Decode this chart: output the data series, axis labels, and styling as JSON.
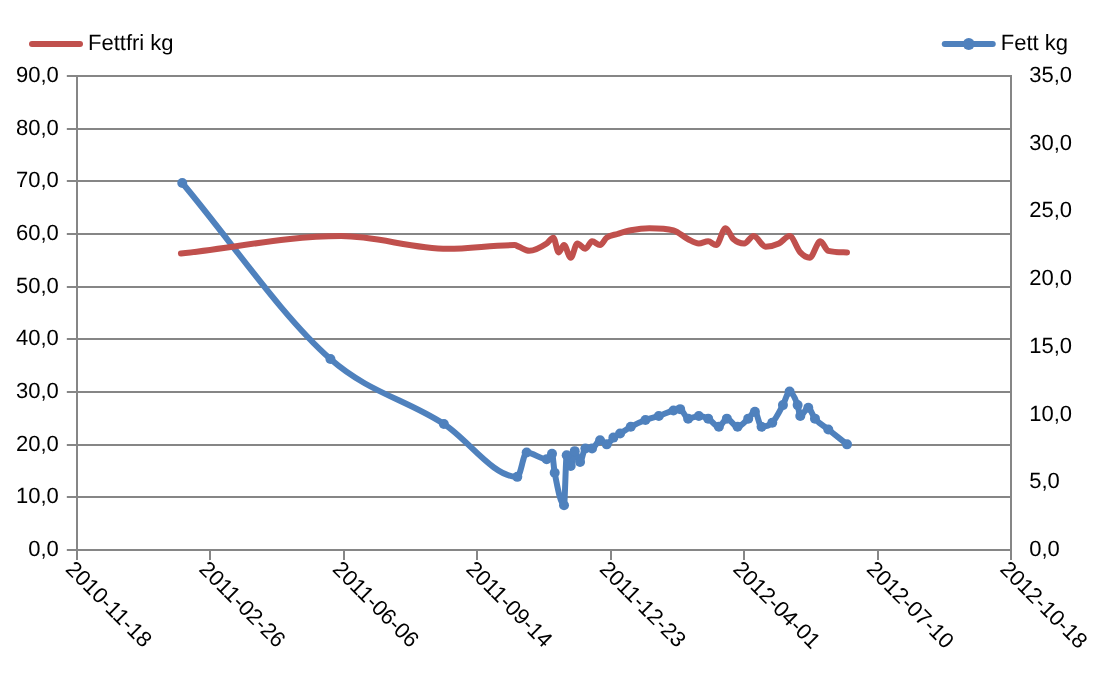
{
  "chart_data": {
    "type": "line",
    "xlim": [
      "2010-11-18",
      "2012-10-18"
    ],
    "xticks": [
      "2010-11-18",
      "2011-02-26",
      "2011-06-06",
      "2011-09-14",
      "2011-12-23",
      "2012-04-01",
      "2012-07-10",
      "2012-10-18"
    ],
    "ylim": [
      0,
      90
    ],
    "yticks": [
      {
        "value": 0,
        "label": "0,0"
      },
      {
        "value": 10,
        "label": "10,0"
      },
      {
        "value": 20,
        "label": "20,0"
      },
      {
        "value": 30,
        "label": "30,0"
      },
      {
        "value": 40,
        "label": "40,0"
      },
      {
        "value": 50,
        "label": "50,0"
      },
      {
        "value": 60,
        "label": "60,0"
      },
      {
        "value": 70,
        "label": "70,0"
      },
      {
        "value": 80,
        "label": "80,0"
      },
      {
        "value": 90,
        "label": "90,0"
      }
    ],
    "y2lim": [
      0,
      35
    ],
    "y2ticks": [
      {
        "value": 0,
        "label": "0,0"
      },
      {
        "value": 5,
        "label": "5,0"
      },
      {
        "value": 10,
        "label": "10,0"
      },
      {
        "value": 15,
        "label": "15,0"
      },
      {
        "value": 20,
        "label": "20,0"
      },
      {
        "value": 25,
        "label": "25,0"
      },
      {
        "value": 30,
        "label": "30,0"
      },
      {
        "value": 35,
        "label": "35,0"
      }
    ],
    "grid": "y",
    "legend": "top",
    "series": [
      {
        "name": "Fettfri kg",
        "color": "#c0504d",
        "marker": "none",
        "x": [
          "2011-02-04",
          "2011-06-04",
          "2011-08-23",
          "2011-10-12",
          "2011-10-15",
          "2011-10-23",
          "2011-11-05",
          "2011-11-10",
          "2011-11-14",
          "2011-11-18",
          "2011-11-23",
          "2011-11-28",
          "2011-12-04",
          "2011-12-09",
          "2011-12-15",
          "2011-12-20",
          "2011-12-28",
          "2012-01-07",
          "2012-01-21",
          "2012-02-08",
          "2012-02-19",
          "2012-02-27",
          "2012-03-05",
          "2012-03-11",
          "2012-03-18",
          "2012-03-24",
          "2012-04-01",
          "2012-04-08",
          "2012-04-17",
          "2012-04-27",
          "2012-05-05",
          "2012-05-13",
          "2012-05-20",
          "2012-05-28",
          "2012-06-03",
          "2012-06-17"
        ],
        "values": [
          56.3,
          59.6,
          57.2,
          57.9,
          57.6,
          56.8,
          58.2,
          59.3,
          56.5,
          57.9,
          55.5,
          58.2,
          57.2,
          58.6,
          57.9,
          59.3,
          60.0,
          60.7,
          61.1,
          60.7,
          59.0,
          58.2,
          58.6,
          57.9,
          61.1,
          59.0,
          58.2,
          59.6,
          57.6,
          58.2,
          59.6,
          56.5,
          55.5,
          58.6,
          56.8,
          56.5
        ]
      },
      {
        "name": "Fett kg",
        "color": "#4f81bd",
        "marker": "circle",
        "axis": "y2",
        "x": [
          "2011-02-05",
          "2011-05-27",
          "2011-08-20",
          "2011-10-14",
          "2011-10-21",
          "2011-11-05",
          "2011-11-09",
          "2011-11-11",
          "2011-11-18",
          "2011-11-20",
          "2011-11-23",
          "2011-11-26",
          "2011-11-30",
          "2011-12-04",
          "2011-12-09",
          "2011-12-15",
          "2011-12-20",
          "2011-12-25",
          "2011-12-30",
          "2012-01-07",
          "2012-01-18",
          "2012-01-28",
          "2012-02-08",
          "2012-02-13",
          "2012-02-19",
          "2012-02-27",
          "2012-03-05",
          "2012-03-13",
          "2012-03-19",
          "2012-03-27",
          "2012-04-04",
          "2012-04-09",
          "2012-04-14",
          "2012-04-22",
          "2012-04-30",
          "2012-05-05",
          "2012-05-11",
          "2012-05-13",
          "2012-05-19",
          "2012-05-24",
          "2012-06-03",
          "2012-06-17"
        ],
        "values": [
          27.1,
          14.1,
          9.3,
          5.4,
          7.2,
          6.7,
          7.1,
          5.7,
          3.3,
          7.0,
          6.2,
          7.3,
          6.5,
          7.5,
          7.5,
          8.1,
          7.8,
          8.3,
          8.6,
          9.1,
          9.6,
          9.9,
          10.3,
          10.4,
          9.7,
          9.9,
          9.7,
          9.1,
          9.7,
          9.1,
          9.7,
          10.2,
          9.1,
          9.4,
          10.7,
          11.7,
          10.7,
          9.9,
          10.5,
          9.7,
          8.9,
          7.8
        ]
      }
    ]
  }
}
